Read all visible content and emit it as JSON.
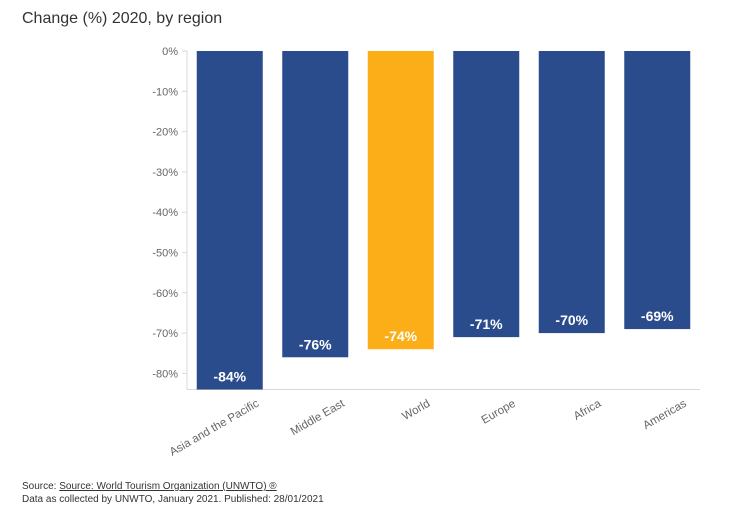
{
  "chart_data": {
    "type": "bar",
    "title": "Change (%) 2020, by region",
    "categories": [
      "Asia and the Pacific",
      "Middle East",
      "World",
      "Europe",
      "Africa",
      "Americas"
    ],
    "values": [
      -84,
      -76,
      -74,
      -71,
      -70,
      -69
    ],
    "data_labels": [
      "-84%",
      "-76%",
      "-74%",
      "-71%",
      "-70%",
      "-69%"
    ],
    "ylim": [
      -84,
      0
    ],
    "yticks": [
      0,
      -10,
      -20,
      -30,
      -40,
      -50,
      -60,
      -70,
      -80
    ],
    "ytick_labels": [
      "0%",
      "-10%",
      "-20%",
      "-30%",
      "-40%",
      "-50%",
      "-60%",
      "-70%",
      "-80%"
    ],
    "grid": false,
    "colors": {
      "default": "#2b4c8c",
      "highlight": "#fbae17",
      "axis": "#d9d9d9",
      "label": "#ffffff"
    },
    "highlight_category": "World"
  },
  "footer": {
    "source_prefix": "Source: ",
    "source_link": "Source: World Tourism Organization (UNWTO) ®",
    "note": "Data as collected by UNWTO, January 2021. Published: 28/01/2021"
  }
}
